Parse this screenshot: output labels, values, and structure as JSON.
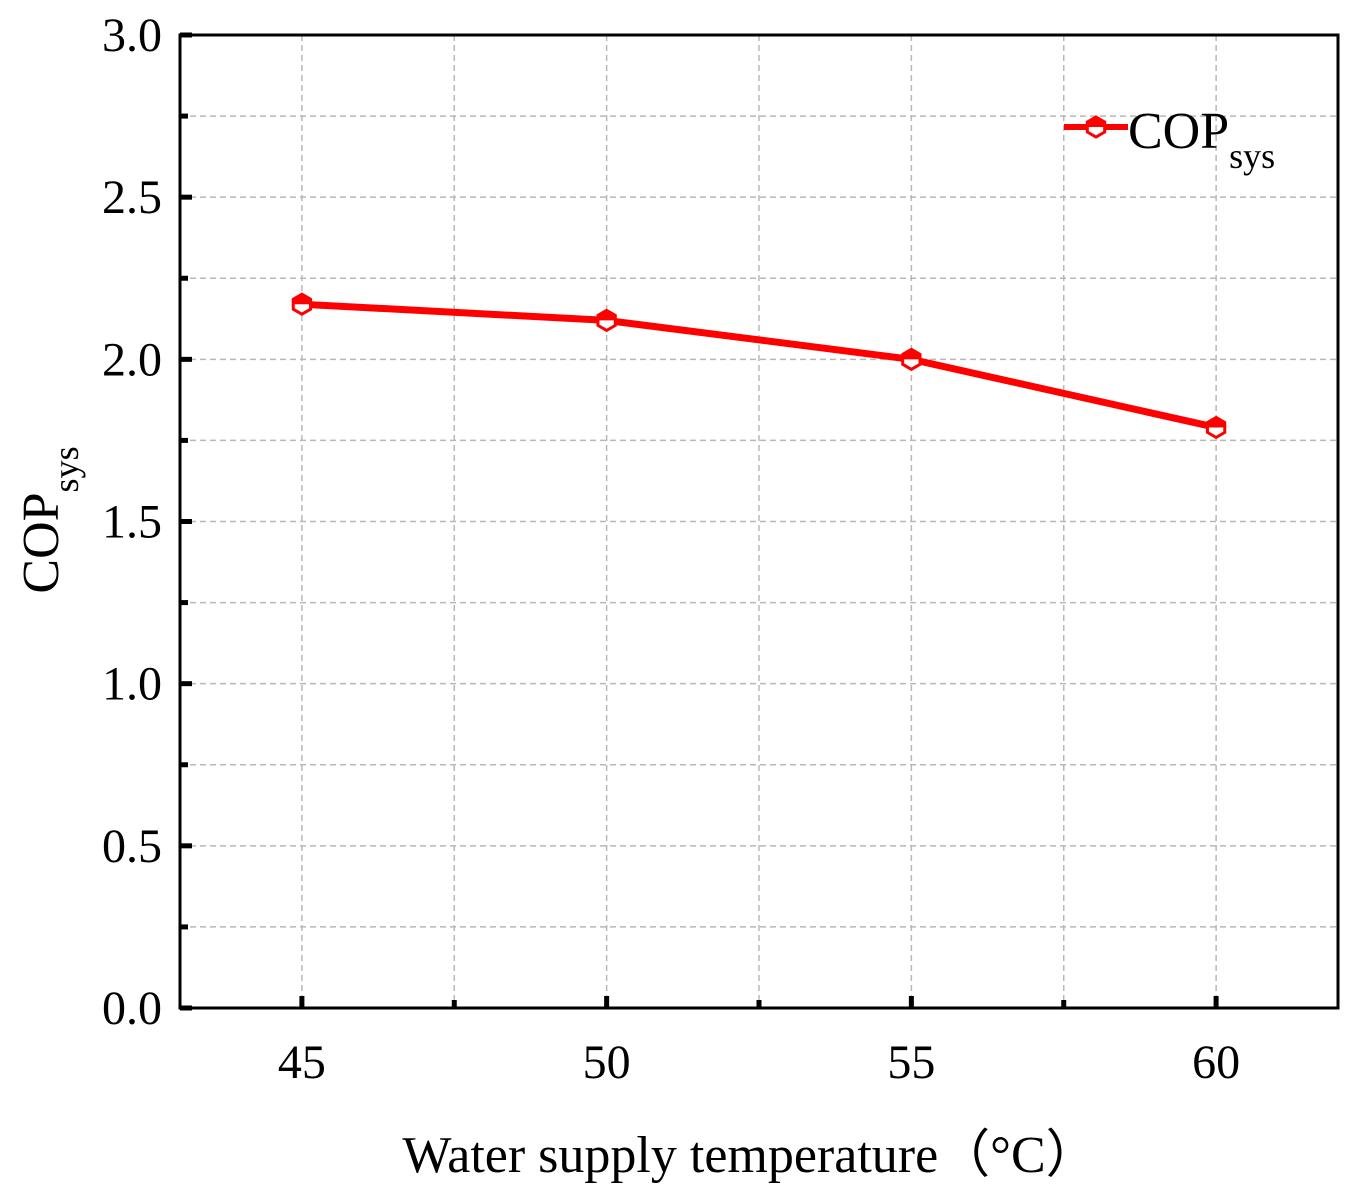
{
  "chart_data": {
    "type": "line",
    "title": "",
    "xlabel": "Water supply temperature（°C）",
    "ylabel": {
      "main": "COP",
      "sub": "sys"
    },
    "x": [
      45,
      50,
      55,
      60
    ],
    "xticks": [
      "45",
      "50",
      "55",
      "60"
    ],
    "xlim": [
      43,
      62
    ],
    "ylim": [
      0,
      3
    ],
    "yticks": [
      "0.0",
      "0.5",
      "1.0",
      "1.5",
      "2.0",
      "2.5",
      "3.0"
    ],
    "grid": true,
    "legend_position": "top-right",
    "series": [
      {
        "name": {
          "main": "COP",
          "sub": "sys"
        },
        "values": [
          2.17,
          2.12,
          2.0,
          1.79
        ],
        "color": "#ff0000"
      }
    ]
  }
}
